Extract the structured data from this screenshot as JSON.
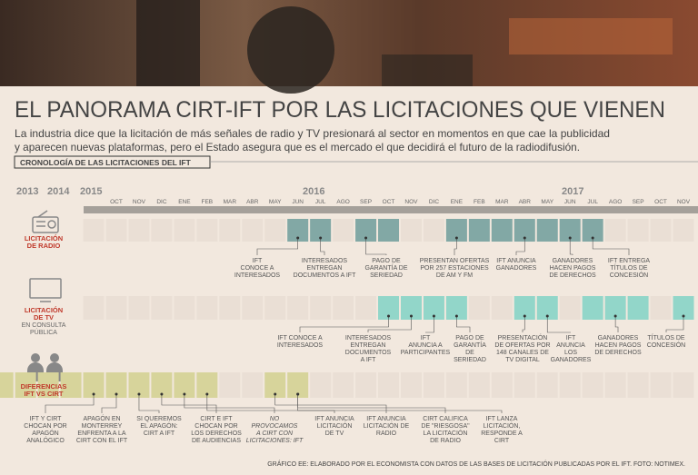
{
  "header": {
    "title": "EL PANORAMA CIRT-IFT POR LAS LICITACIONES QUE VIENEN",
    "subtitle": [
      "La industria dice que la licitación de más señales de radio y TV presionará al sector en momentos en que cae la publicidad",
      "y aparecen nuevas plataformas, pero el Estado asegura que es el mercado el que decidirá el futuro de la radiodifusión."
    ]
  },
  "section_label": "CRONOLOGÍA DE LAS LICITACIONES DEL IFT",
  "years": [
    "2013",
    "2014",
    "2015",
    "2016",
    "2017"
  ],
  "months": [
    "OCT",
    "NOV",
    "DIC",
    "ENE",
    "FEB",
    "MAR",
    "ABR",
    "MAY",
    "JUN",
    "JUL",
    "AGO",
    "SEP",
    "OCT",
    "NOV",
    "DIC",
    "ENE",
    "FEB",
    "MAR",
    "ABR",
    "MAY",
    "JUN",
    "JUL",
    "AGO",
    "SEP",
    "OCT",
    "NOV"
  ],
  "rows": [
    {
      "label": [
        "LICITACIÓN",
        "DE RADIO"
      ],
      "annotations": [
        [
          "IFT",
          "CONOCE A",
          "INTERESADOS"
        ],
        [
          "INTERESADOS",
          "ENTREGAN",
          "DOCUMENTOS A IFT"
        ],
        [
          "PAGO DE",
          "GARANTÍA DE",
          "SERIEDAD"
        ],
        [
          "PRESENTAN OFERTAS",
          "POR 257 ESTACIONES",
          "DE AM Y FM"
        ],
        [
          "IFT ANUNCIA",
          "GANADORES"
        ],
        [
          "GANADORES",
          "HACEN PAGOS",
          "DE DERECHOS"
        ],
        [
          "IFT ENTREGA",
          "TÍTULOS DE",
          "CONCESIÓN"
        ]
      ]
    },
    {
      "label": [
        "LICITACIÓN",
        "DE TV"
      ],
      "sublabel": [
        "EN CONSULTA",
        "PÚBLICA"
      ],
      "annotations": [
        [
          "IFT CONOCE A",
          "INTERESADOS"
        ],
        [
          "INTERESADOS",
          "ENTREGAN",
          "DOCUMENTOS",
          "A IFT"
        ],
        [
          "IFT",
          "ANUNCIA A",
          "PARTICIPANTES"
        ],
        [
          "PAGO DE",
          "GARANTÍA",
          "DE",
          "SERIEDAD"
        ],
        [
          "PRESENTACIÓN",
          "DE OFERTAS POR",
          "148 CANALES DE",
          "TV DIGITAL"
        ],
        [
          "IFT",
          "ANUNCIA",
          "LOS",
          "GANADORES"
        ],
        [
          "GANADORES",
          "HACEN PAGOS",
          "DE DERECHOS"
        ],
        [
          "TÍTULOS DE",
          "CONCESIÓN"
        ]
      ]
    },
    {
      "label": [
        "DIFERENCIAS",
        "IFT VS CIRT"
      ],
      "annotations": [
        [
          "IFT Y CIRT",
          "CHOCAN POR",
          "APAGÓN",
          "ANALÓGICO"
        ],
        [
          "APAGÓN EN",
          "MONTERREY",
          "ENFRENTA A LA",
          "CIRT CON EL IFT"
        ],
        [
          "SI QUEREMOS",
          "EL APAGÓN:",
          "CIRT A IFT"
        ],
        [
          "CIRT E IFT",
          "CHOCAN POR",
          "LOS DERECHOS",
          "DE AUDIENCIAS"
        ],
        [
          "NO",
          "PROVOCAMOS",
          "A CIRT CON",
          "LICITACIONES: IFT"
        ],
        [
          "IFT ANUNCIA",
          "LICITACIÓN",
          "DE TV"
        ],
        [
          "IFT ANUNCIA",
          "LICITACIÓN DE",
          "RADIO"
        ],
        [
          "CIRT CALIFICA",
          "DE \"RIESGOSA\"",
          "LA LICITACIÓN",
          "DE RADIO"
        ],
        [
          "IFT LANZA",
          "LICITACIÓN,",
          "RESPONDE A",
          "CIRT"
        ]
      ]
    }
  ],
  "footer": "GRÁFICO EE: ELABORADO POR EL ECONOMISTA  CON DATOS DE LAS BASES DE LICITACIÓN PUBLICADAS POR EL IFT. FOTO: NOTIMEX."
}
